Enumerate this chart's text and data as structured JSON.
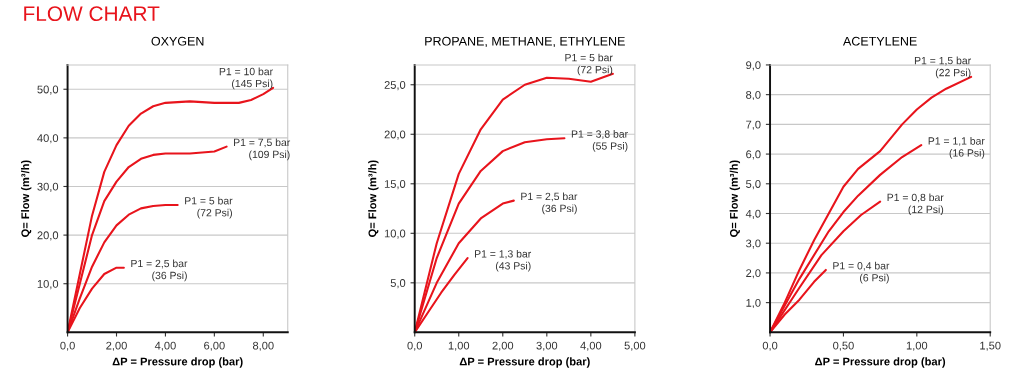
{
  "chart_data": [
    {
      "type": "line",
      "title": "OXYGEN",
      "xlabel": "ΔP = Pressure drop (bar)",
      "ylabel": "Q= Flow (m³/h)",
      "annotations": [
        "FLOW CHART"
      ],
      "grid": "y",
      "legend": false,
      "xlim": [
        0,
        9
      ],
      "ylim": [
        0,
        55
      ],
      "xticks": [
        {
          "value": 0,
          "label": "0,0"
        },
        {
          "value": 2,
          "label": "2,00"
        },
        {
          "value": 4,
          "label": "4,00"
        },
        {
          "value": 6,
          "label": "6,00"
        },
        {
          "value": 8,
          "label": "8,00"
        }
      ],
      "yticks": [
        {
          "value": 10,
          "label": "10,0"
        },
        {
          "value": 20,
          "label": "20,0"
        },
        {
          "value": 30,
          "label": "30,0"
        },
        {
          "value": 40,
          "label": "40,0"
        },
        {
          "value": 50,
          "label": "50,0"
        }
      ],
      "series": [
        {
          "name": "P1 = 10 bar\n(145 Psi)",
          "color": "#e8141c",
          "x": [
            0,
            0.5,
            1,
            1.5,
            2,
            2.5,
            3,
            3.5,
            4,
            5,
            6,
            7,
            7.5,
            8,
            8.4
          ],
          "values": [
            0,
            12,
            24,
            33,
            38.5,
            42.5,
            45,
            46.5,
            47.2,
            47.5,
            47.2,
            47.2,
            47.8,
            49,
            50.3
          ]
        },
        {
          "name": "P1 = 7,5 bar\n(109 Psi)",
          "color": "#e8141c",
          "x": [
            0,
            0.5,
            1,
            1.5,
            2,
            2.5,
            3,
            3.5,
            4,
            5,
            6,
            6.5
          ],
          "values": [
            0,
            10,
            20,
            27,
            31,
            34,
            35.7,
            36.5,
            36.8,
            36.8,
            37.2,
            38.2
          ]
        },
        {
          "name": "P1 = 5 bar\n(72 Psi)",
          "color": "#e8141c",
          "x": [
            0,
            0.5,
            1,
            1.5,
            2,
            2.5,
            3,
            3.5,
            4,
            4.5
          ],
          "values": [
            0,
            7,
            13.5,
            18.5,
            22,
            24.2,
            25.5,
            26,
            26.2,
            26.2
          ]
        },
        {
          "name": "P1 = 2,5 bar\n(36 Psi)",
          "color": "#e8141c",
          "x": [
            0,
            0.5,
            1,
            1.5,
            2,
            2.3
          ],
          "values": [
            0,
            5,
            9,
            12,
            13.3,
            13.3
          ]
        }
      ]
    },
    {
      "type": "line",
      "title": "PROPANE, METHANE, ETHYLENE",
      "xlabel": "ΔP = Pressure drop (bar)",
      "ylabel": "Q= Flow (m³/h)",
      "grid": "y",
      "legend": false,
      "xlim": [
        0,
        5
      ],
      "ylim": [
        0,
        27
      ],
      "xticks": [
        {
          "value": 0,
          "label": "0,0"
        },
        {
          "value": 1,
          "label": "1,00"
        },
        {
          "value": 2,
          "label": "2,00"
        },
        {
          "value": 3,
          "label": "3,00"
        },
        {
          "value": 4,
          "label": "4,00"
        },
        {
          "value": 5,
          "label": "5,00"
        }
      ],
      "yticks": [
        {
          "value": 5,
          "label": "5,0"
        },
        {
          "value": 10,
          "label": "10,0"
        },
        {
          "value": 15,
          "label": "15,0"
        },
        {
          "value": 20,
          "label": "20,0"
        },
        {
          "value": 25,
          "label": "25,0"
        }
      ],
      "series": [
        {
          "name": "P1 = 5 bar\n(72 Psi)",
          "color": "#e8141c",
          "x": [
            0,
            0.5,
            1,
            1.5,
            2,
            2.5,
            3,
            3.5,
            4,
            4.5
          ],
          "values": [
            0,
            9,
            16,
            20.5,
            23.5,
            25,
            25.7,
            25.6,
            25.3,
            26.1
          ]
        },
        {
          "name": "P1 = 3,8 bar\n(55 Psi)",
          "color": "#e8141c",
          "x": [
            0,
            0.5,
            1,
            1.5,
            2,
            2.5,
            3,
            3.4
          ],
          "values": [
            0,
            7.5,
            13,
            16.3,
            18.3,
            19.2,
            19.5,
            19.6
          ]
        },
        {
          "name": "P1 = 2,5 bar\n(36 Psi)",
          "color": "#e8141c",
          "x": [
            0,
            0.5,
            1,
            1.5,
            2,
            2.25
          ],
          "values": [
            0,
            5,
            9,
            11.5,
            13,
            13.3
          ]
        },
        {
          "name": "P1 = 1,3 bar\n(43 Psi)",
          "color": "#e8141c",
          "x": [
            0,
            0.3,
            0.6,
            0.9,
            1.2
          ],
          "values": [
            0,
            2,
            4,
            5.8,
            7.5
          ]
        }
      ]
    },
    {
      "type": "line",
      "title": "ACETYLENE",
      "xlabel": "ΔP = Pressure drop (bar)",
      "ylabel": "Q= Flow (m³/h)",
      "grid": "y",
      "legend": false,
      "xlim": [
        0,
        1.5
      ],
      "ylim": [
        0,
        9
      ],
      "xticks": [
        {
          "value": 0,
          "label": "0,0"
        },
        {
          "value": 0.5,
          "label": "0,50"
        },
        {
          "value": 1,
          "label": "1,00"
        },
        {
          "value": 1.5,
          "label": "1,50"
        }
      ],
      "yticks": [
        {
          "value": 1,
          "label": "1,0"
        },
        {
          "value": 2,
          "label": "2,0"
        },
        {
          "value": 3,
          "label": "3,0"
        },
        {
          "value": 4,
          "label": "4,0"
        },
        {
          "value": 5,
          "label": "5,0"
        },
        {
          "value": 6,
          "label": "6,0"
        },
        {
          "value": 7,
          "label": "7,0"
        },
        {
          "value": 8,
          "label": "8,0"
        },
        {
          "value": 9,
          "label": "9,0"
        }
      ],
      "series": [
        {
          "name": "P1 = 1,5 bar\n(22 Psi)",
          "color": "#e8141c",
          "x": [
            0,
            0.1,
            0.2,
            0.3,
            0.4,
            0.5,
            0.6,
            0.75,
            0.9,
            1.0,
            1.1,
            1.2,
            1.37
          ],
          "values": [
            0,
            1.0,
            2.1,
            3.1,
            4.0,
            4.9,
            5.5,
            6.1,
            7.0,
            7.5,
            7.9,
            8.2,
            8.6
          ]
        },
        {
          "name": "P1 = 1,1 bar\n(16 Psi)",
          "color": "#e8141c",
          "x": [
            0,
            0.2,
            0.4,
            0.5,
            0.6,
            0.75,
            0.9,
            1.03
          ],
          "values": [
            0,
            1.8,
            3.4,
            4.05,
            4.6,
            5.3,
            5.9,
            6.3
          ]
        },
        {
          "name": "P1 = 0,8 bar\n(12 Psi)",
          "color": "#e8141c",
          "x": [
            0,
            0.2,
            0.35,
            0.5,
            0.62,
            0.75
          ],
          "values": [
            0,
            1.5,
            2.6,
            3.4,
            3.95,
            4.4
          ]
        },
        {
          "name": "P1 = 0,4 bar\n(6 Psi)",
          "color": "#e8141c",
          "x": [
            0,
            0.1,
            0.2,
            0.3,
            0.38
          ],
          "values": [
            0,
            0.6,
            1.1,
            1.7,
            2.1
          ]
        }
      ]
    }
  ]
}
